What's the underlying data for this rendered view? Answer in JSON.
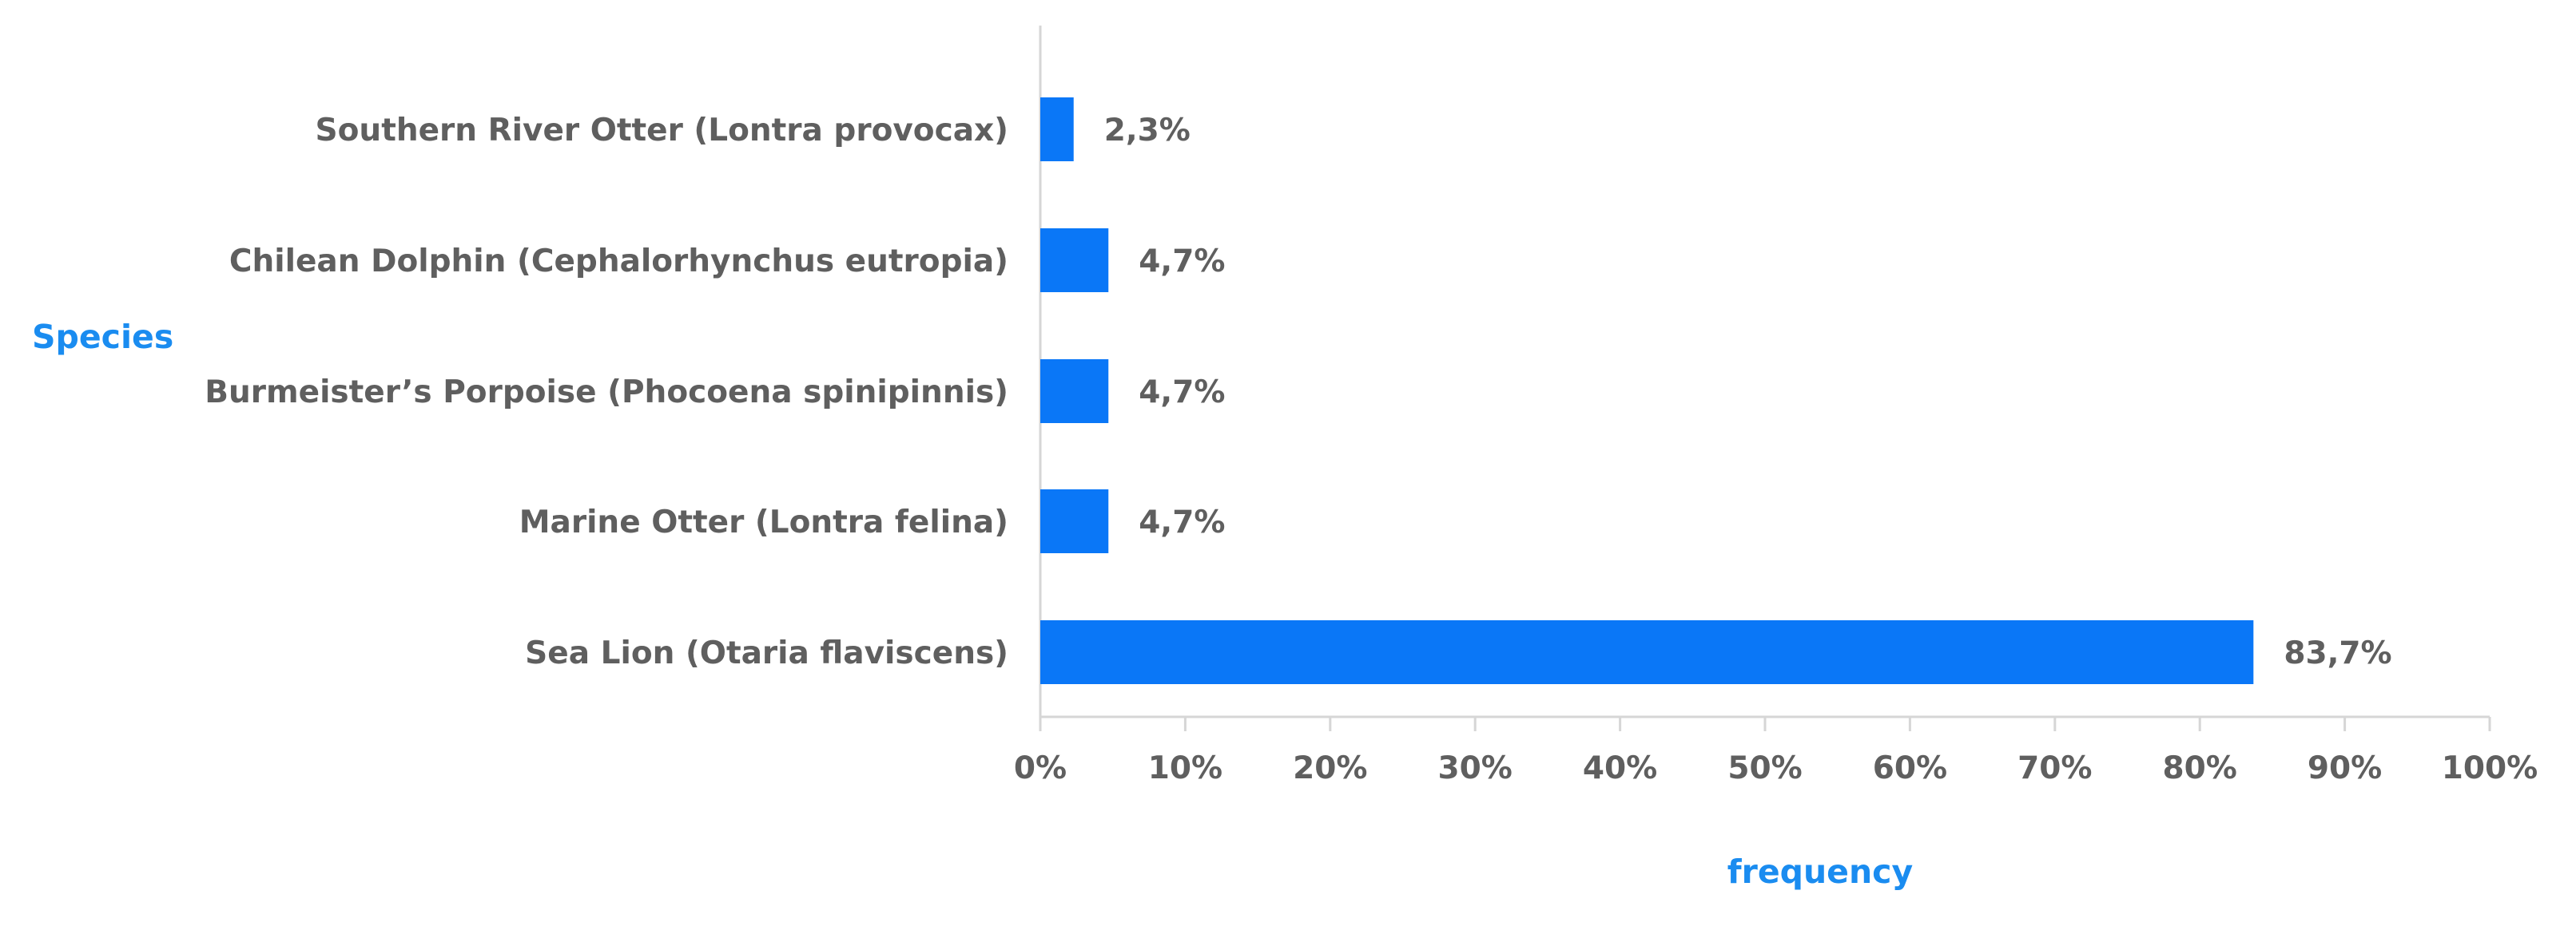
{
  "chart_data": {
    "type": "bar",
    "orientation": "horizontal",
    "categories": [
      "Southern River Otter (Lontra provocax)",
      "Chilean Dolphin (Cephalorhynchus eutropia)",
      "Burmeister’s Porpoise (Phocoena spinipinnis)",
      "Marine Otter (Lontra felina)",
      "Sea Lion (Otaria flaviscens)"
    ],
    "values": [
      2.3,
      4.7,
      4.7,
      4.7,
      83.7
    ],
    "value_labels": [
      "2,3%",
      "4,7%",
      "4,7%",
      "4,7%",
      "83,7%"
    ],
    "xlabel": "frequency",
    "ylabel": "Species",
    "xlim": [
      0,
      100
    ],
    "x_ticks": [
      0,
      10,
      20,
      30,
      40,
      50,
      60,
      70,
      80,
      90,
      100
    ],
    "x_tick_labels": [
      "0%",
      "10%",
      "20%",
      "30%",
      "40%",
      "50%",
      "60%",
      "70%",
      "80%",
      "90%",
      "100%"
    ],
    "grid": false,
    "legend": "none",
    "colors": {
      "bar": "#0a77f7",
      "axis_title": "#1a8cf0",
      "axis_line": "#d6d6d6",
      "text": "#5f5f5f"
    }
  }
}
